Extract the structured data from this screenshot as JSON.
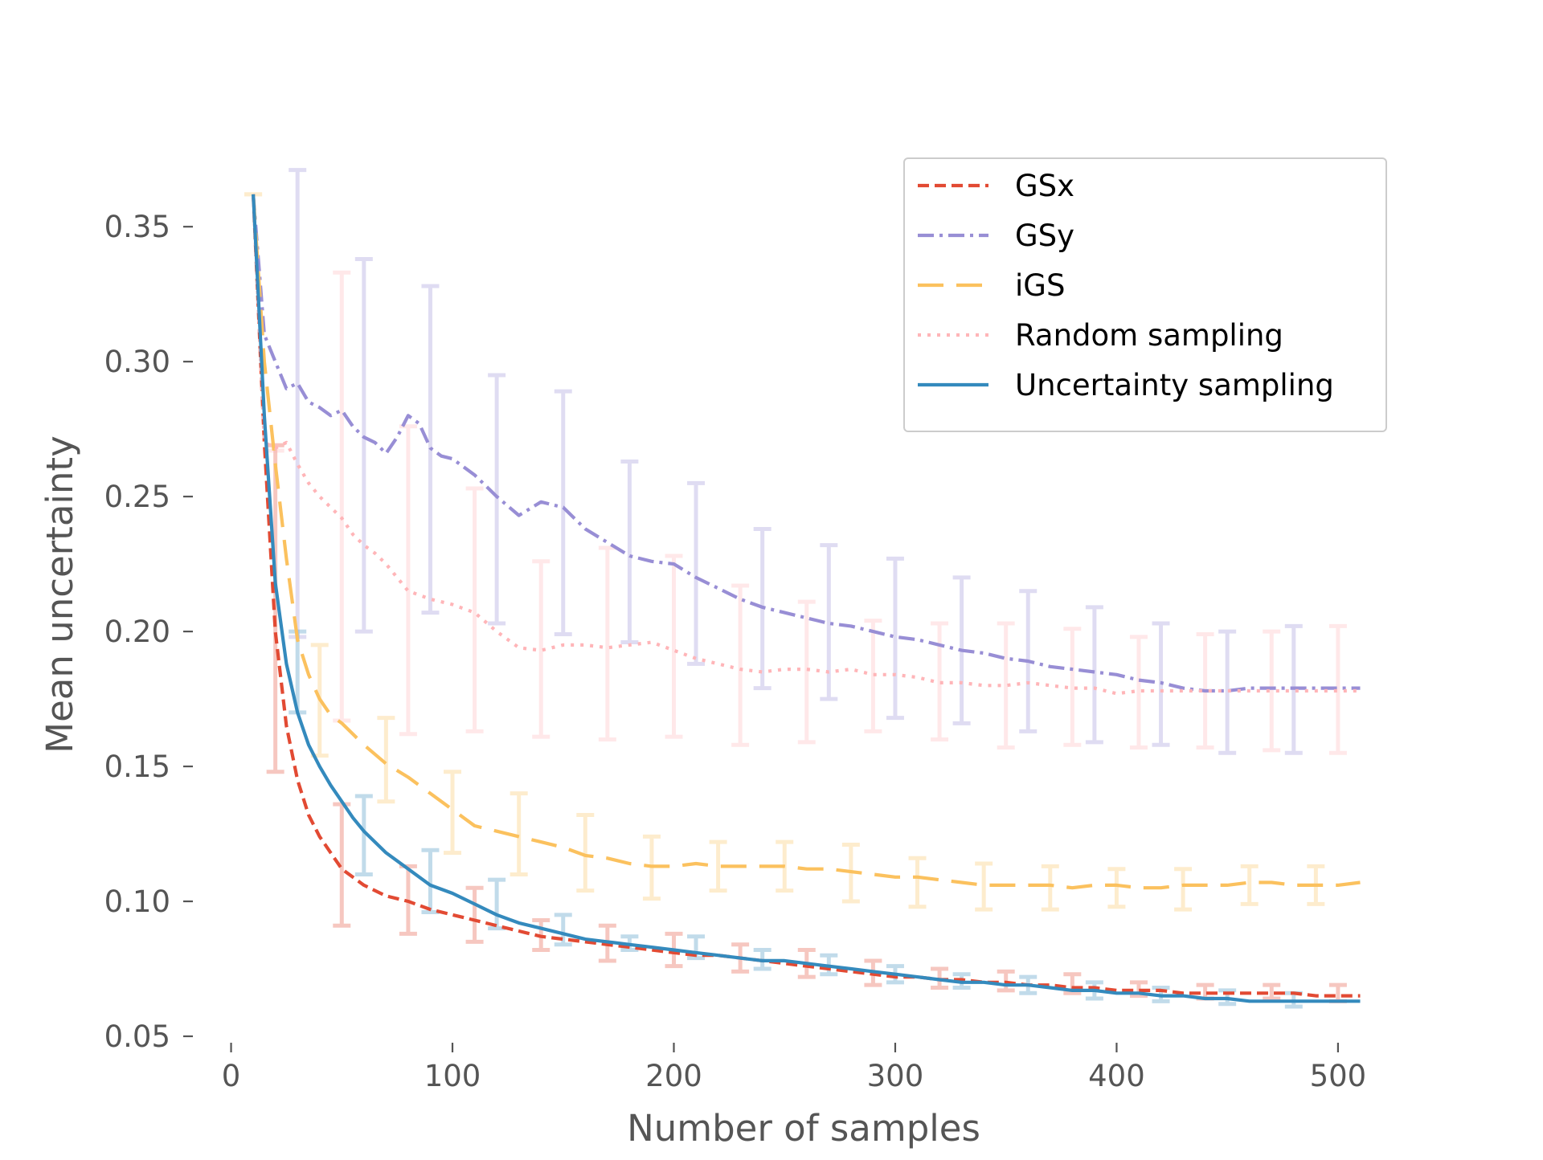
{
  "chart_data": {
    "type": "line",
    "title": "",
    "xlabel": "Number of samples",
    "ylabel": "Mean uncertainty",
    "xlim": [
      -10,
      520
    ],
    "ylim": [
      0.05,
      0.37
    ],
    "xticks": [
      0,
      100,
      200,
      300,
      400,
      500
    ],
    "xtick_labels": [
      "0",
      "100",
      "200",
      "300",
      "400",
      "500"
    ],
    "yticks": [
      0.05,
      0.1,
      0.15,
      0.2,
      0.25,
      0.3,
      0.35
    ],
    "ytick_labels": [
      "0.05",
      "0.10",
      "0.15",
      "0.20",
      "0.25",
      "0.30",
      "0.35"
    ],
    "grid": false,
    "legend_position": "top-right",
    "series": [
      {
        "name": "GSx",
        "color": "#e24a33",
        "style": "dashed",
        "x": [
          10,
          15,
          20,
          25,
          30,
          35,
          40,
          45,
          50,
          60,
          70,
          80,
          90,
          100,
          110,
          120,
          130,
          140,
          150,
          160,
          170,
          180,
          190,
          200,
          210,
          220,
          230,
          240,
          250,
          260,
          270,
          280,
          290,
          300,
          310,
          320,
          330,
          340,
          350,
          360,
          370,
          380,
          390,
          400,
          410,
          420,
          430,
          440,
          450,
          460,
          470,
          480,
          490,
          500,
          510
        ],
        "y": [
          0.362,
          0.27,
          0.2,
          0.165,
          0.145,
          0.132,
          0.124,
          0.118,
          0.112,
          0.106,
          0.102,
          0.1,
          0.097,
          0.095,
          0.093,
          0.091,
          0.089,
          0.087,
          0.086,
          0.085,
          0.084,
          0.083,
          0.082,
          0.081,
          0.08,
          0.08,
          0.079,
          0.078,
          0.077,
          0.076,
          0.075,
          0.074,
          0.073,
          0.072,
          0.072,
          0.071,
          0.071,
          0.07,
          0.07,
          0.069,
          0.069,
          0.068,
          0.068,
          0.067,
          0.067,
          0.067,
          0.066,
          0.066,
          0.066,
          0.066,
          0.066,
          0.066,
          0.065,
          0.065,
          0.065
        ],
        "error_x": [
          20,
          50,
          80,
          110,
          140,
          170,
          200,
          230,
          260,
          290,
          320,
          350,
          380,
          410,
          440,
          470,
          500
        ],
        "error_low": [
          0.148,
          0.091,
          0.088,
          0.085,
          0.082,
          0.078,
          0.076,
          0.074,
          0.072,
          0.069,
          0.068,
          0.067,
          0.066,
          0.065,
          0.064,
          0.064,
          0.063
        ],
        "error_high": [
          0.269,
          0.136,
          0.113,
          0.105,
          0.093,
          0.091,
          0.088,
          0.084,
          0.082,
          0.078,
          0.075,
          0.074,
          0.073,
          0.07,
          0.069,
          0.069,
          0.069
        ]
      },
      {
        "name": "GSy",
        "color": "#988ed5",
        "style": "dashdot",
        "x": [
          10,
          15,
          20,
          25,
          30,
          35,
          40,
          45,
          50,
          55,
          60,
          65,
          70,
          75,
          80,
          85,
          90,
          95,
          100,
          110,
          120,
          130,
          140,
          150,
          160,
          170,
          180,
          190,
          200,
          210,
          220,
          230,
          240,
          250,
          260,
          270,
          280,
          290,
          300,
          310,
          320,
          330,
          340,
          350,
          360,
          370,
          380,
          390,
          400,
          410,
          420,
          430,
          440,
          450,
          460,
          470,
          480,
          490,
          500,
          510
        ],
        "y": [
          0.362,
          0.31,
          0.3,
          0.29,
          0.292,
          0.285,
          0.283,
          0.28,
          0.282,
          0.276,
          0.272,
          0.27,
          0.266,
          0.272,
          0.28,
          0.277,
          0.268,
          0.265,
          0.264,
          0.258,
          0.25,
          0.243,
          0.248,
          0.246,
          0.238,
          0.233,
          0.228,
          0.226,
          0.225,
          0.22,
          0.216,
          0.212,
          0.209,
          0.207,
          0.205,
          0.203,
          0.202,
          0.2,
          0.198,
          0.197,
          0.195,
          0.193,
          0.192,
          0.19,
          0.189,
          0.187,
          0.186,
          0.185,
          0.184,
          0.182,
          0.181,
          0.179,
          0.178,
          0.178,
          0.179,
          0.179,
          0.179,
          0.179,
          0.179,
          0.179
        ],
        "error_x": [
          30,
          60,
          90,
          120,
          150,
          180,
          210,
          240,
          270,
          300,
          330,
          360,
          390,
          420,
          450,
          480
        ],
        "error_low": [
          0.198,
          0.2,
          0.207,
          0.203,
          0.199,
          0.196,
          0.188,
          0.179,
          0.175,
          0.168,
          0.166,
          0.163,
          0.159,
          0.158,
          0.155,
          0.155
        ],
        "error_high": [
          0.371,
          0.338,
          0.328,
          0.295,
          0.289,
          0.263,
          0.255,
          0.238,
          0.232,
          0.227,
          0.22,
          0.215,
          0.209,
          0.203,
          0.2,
          0.202
        ]
      },
      {
        "name": "iGS",
        "color": "#fbc15e",
        "style": "longdash",
        "x": [
          10,
          15,
          20,
          25,
          30,
          35,
          40,
          45,
          50,
          55,
          60,
          70,
          80,
          90,
          100,
          110,
          120,
          130,
          140,
          150,
          160,
          170,
          180,
          190,
          200,
          210,
          220,
          230,
          240,
          250,
          260,
          270,
          280,
          290,
          300,
          310,
          320,
          330,
          340,
          350,
          360,
          370,
          380,
          390,
          400,
          410,
          420,
          430,
          440,
          450,
          460,
          470,
          480,
          490,
          500,
          510
        ],
        "y": [
          0.362,
          0.3,
          0.262,
          0.227,
          0.197,
          0.184,
          0.175,
          0.169,
          0.166,
          0.162,
          0.158,
          0.151,
          0.146,
          0.14,
          0.134,
          0.128,
          0.126,
          0.124,
          0.122,
          0.12,
          0.117,
          0.116,
          0.114,
          0.113,
          0.113,
          0.114,
          0.113,
          0.113,
          0.113,
          0.113,
          0.112,
          0.112,
          0.111,
          0.11,
          0.109,
          0.109,
          0.108,
          0.107,
          0.106,
          0.106,
          0.106,
          0.106,
          0.105,
          0.106,
          0.106,
          0.105,
          0.105,
          0.106,
          0.106,
          0.106,
          0.107,
          0.107,
          0.106,
          0.106,
          0.106,
          0.107
        ],
        "error_x": [
          10,
          40,
          70,
          100,
          130,
          160,
          190,
          220,
          250,
          280,
          310,
          340,
          370,
          400,
          430,
          460,
          490
        ],
        "error_low": [
          0.362,
          0.154,
          0.137,
          0.118,
          0.11,
          0.104,
          0.101,
          0.104,
          0.104,
          0.1,
          0.098,
          0.097,
          0.097,
          0.098,
          0.097,
          0.099,
          0.099
        ],
        "error_high": [
          0.362,
          0.195,
          0.168,
          0.148,
          0.14,
          0.132,
          0.124,
          0.122,
          0.122,
          0.121,
          0.116,
          0.114,
          0.113,
          0.112,
          0.112,
          0.113,
          0.113
        ]
      },
      {
        "name": "Random sampling",
        "color": "#ffb5b8",
        "style": "dotted",
        "x": [
          10,
          15,
          20,
          25,
          30,
          35,
          40,
          45,
          50,
          55,
          60,
          65,
          70,
          80,
          90,
          100,
          110,
          120,
          130,
          140,
          150,
          160,
          170,
          180,
          190,
          200,
          210,
          220,
          230,
          240,
          250,
          260,
          270,
          280,
          290,
          300,
          310,
          320,
          330,
          340,
          350,
          360,
          370,
          380,
          390,
          400,
          410,
          420,
          430,
          440,
          450,
          460,
          470,
          480,
          490,
          500,
          510
        ],
        "y": [
          0.362,
          0.27,
          0.268,
          0.27,
          0.262,
          0.255,
          0.25,
          0.246,
          0.242,
          0.236,
          0.232,
          0.229,
          0.225,
          0.215,
          0.212,
          0.21,
          0.207,
          0.2,
          0.194,
          0.193,
          0.195,
          0.195,
          0.194,
          0.195,
          0.196,
          0.193,
          0.19,
          0.188,
          0.186,
          0.185,
          0.186,
          0.186,
          0.185,
          0.186,
          0.184,
          0.184,
          0.183,
          0.181,
          0.181,
          0.18,
          0.18,
          0.181,
          0.18,
          0.179,
          0.179,
          0.177,
          0.178,
          0.178,
          0.178,
          0.178,
          0.178,
          0.178,
          0.178,
          0.178,
          0.178,
          0.178,
          0.178
        ],
        "error_x": [
          20,
          50,
          80,
          110,
          140,
          170,
          200,
          230,
          260,
          290,
          320,
          350,
          380,
          410,
          440,
          470,
          500
        ],
        "error_low": [
          0.267,
          0.167,
          0.162,
          0.163,
          0.161,
          0.16,
          0.161,
          0.158,
          0.159,
          0.163,
          0.16,
          0.157,
          0.158,
          0.157,
          0.157,
          0.156,
          0.155
        ],
        "error_high": [
          0.269,
          0.333,
          0.276,
          0.253,
          0.226,
          0.231,
          0.228,
          0.217,
          0.211,
          0.204,
          0.203,
          0.203,
          0.201,
          0.198,
          0.199,
          0.2,
          0.202
        ]
      },
      {
        "name": "Uncertainty sampling",
        "color": "#348abd",
        "style": "solid",
        "x": [
          10,
          15,
          20,
          25,
          30,
          35,
          40,
          45,
          50,
          55,
          60,
          70,
          80,
          90,
          100,
          110,
          120,
          130,
          140,
          150,
          160,
          170,
          180,
          190,
          200,
          210,
          220,
          230,
          240,
          250,
          260,
          270,
          280,
          290,
          300,
          310,
          320,
          330,
          340,
          350,
          360,
          370,
          380,
          390,
          400,
          410,
          420,
          430,
          440,
          450,
          460,
          470,
          480,
          490,
          500,
          510
        ],
        "y": [
          0.362,
          0.28,
          0.218,
          0.188,
          0.17,
          0.158,
          0.15,
          0.143,
          0.137,
          0.131,
          0.126,
          0.118,
          0.112,
          0.106,
          0.103,
          0.099,
          0.095,
          0.092,
          0.09,
          0.088,
          0.086,
          0.085,
          0.084,
          0.083,
          0.082,
          0.081,
          0.08,
          0.079,
          0.078,
          0.078,
          0.077,
          0.076,
          0.075,
          0.074,
          0.073,
          0.072,
          0.071,
          0.07,
          0.07,
          0.069,
          0.069,
          0.068,
          0.067,
          0.067,
          0.066,
          0.066,
          0.065,
          0.065,
          0.064,
          0.064,
          0.063,
          0.063,
          0.063,
          0.063,
          0.063,
          0.063
        ],
        "error_x": [
          30,
          60,
          90,
          120,
          150,
          180,
          210,
          240,
          270,
          300,
          330,
          360,
          390,
          420,
          450,
          480
        ],
        "error_low": [
          0.17,
          0.11,
          0.096,
          0.09,
          0.084,
          0.082,
          0.079,
          0.075,
          0.073,
          0.07,
          0.068,
          0.066,
          0.064,
          0.063,
          0.062,
          0.061
        ],
        "error_high": [
          0.2,
          0.139,
          0.119,
          0.108,
          0.095,
          0.087,
          0.087,
          0.082,
          0.08,
          0.076,
          0.073,
          0.072,
          0.07,
          0.068,
          0.067,
          0.066
        ]
      }
    ]
  }
}
